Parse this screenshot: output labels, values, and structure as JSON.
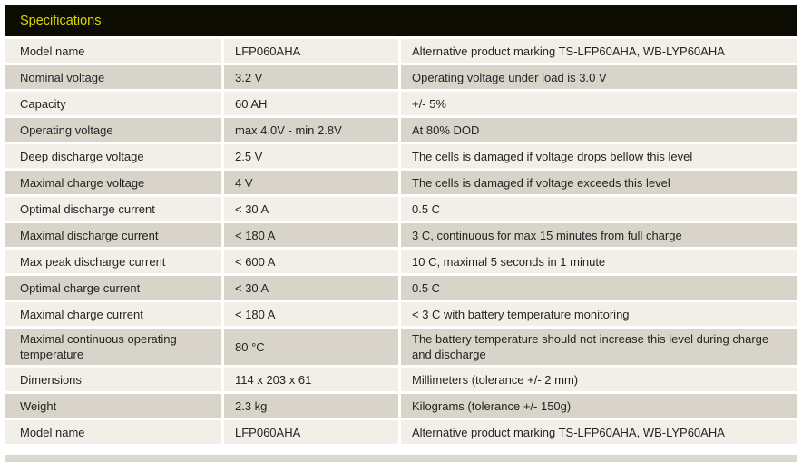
{
  "header": {
    "title": "Specifications"
  },
  "table": {
    "rows": [
      {
        "param": "Model name",
        "value": "LFP060AHA",
        "description": "Alternative product marking TS-LFP60AHA, WB-LYP60AHA"
      },
      {
        "param": "Nominal voltage",
        "value": "3.2 V",
        "description": "Operating voltage under load is 3.0 V"
      },
      {
        "param": "Capacity",
        "value": "60 AH",
        "description": "+/- 5%"
      },
      {
        "param": "Operating voltage",
        "value": "max 4.0V - min 2.8V",
        "description": "At 80% DOD"
      },
      {
        "param": "Deep discharge voltage",
        "value": "2.5 V",
        "description": "The cells is damaged if voltage drops bellow this level"
      },
      {
        "param": "Maximal charge voltage",
        "value": "4 V",
        "description": "The cells is damaged if voltage exceeds this level"
      },
      {
        "param": "Optimal discharge current",
        "value": "< 30 A",
        "description": "0.5 C"
      },
      {
        "param": "Maximal discharge current",
        "value": "< 180 A",
        "description": "3 C, continuous for max 15 minutes from full charge"
      },
      {
        "param": "Max peak discharge current",
        "value": "< 600 A",
        "description": "10 C, maximal 5 seconds in 1 minute"
      },
      {
        "param": "Optimal charge current",
        "value": "< 30 A",
        "description": "0.5 C"
      },
      {
        "param": "Maximal charge current",
        "value": "< 180 A",
        "description": "< 3 C with battery temperature monitoring"
      },
      {
        "param": "Maximal continuous operating temperature",
        "value": "80 °C",
        "description": "The battery temperature should not increase this level during charge and discharge"
      },
      {
        "param": "Dimensions",
        "value": "114 x 203 x 61",
        "description": "Millimeters (tolerance +/- 2 mm)"
      },
      {
        "param": "Weight",
        "value": "2.3 kg",
        "description": "Kilograms (tolerance +/- 150g)"
      },
      {
        "param": "Model name",
        "value": "LFP060AHA",
        "description": "Alternative product marking TS-LFP60AHA, WB-LYP60AHA"
      }
    ]
  },
  "colors": {
    "header_bg": "#0c0c03",
    "header_text": "#ddd700",
    "row_light": "#f1efe8",
    "row_gray": "#d8d4c9",
    "body_text": "#252423"
  }
}
